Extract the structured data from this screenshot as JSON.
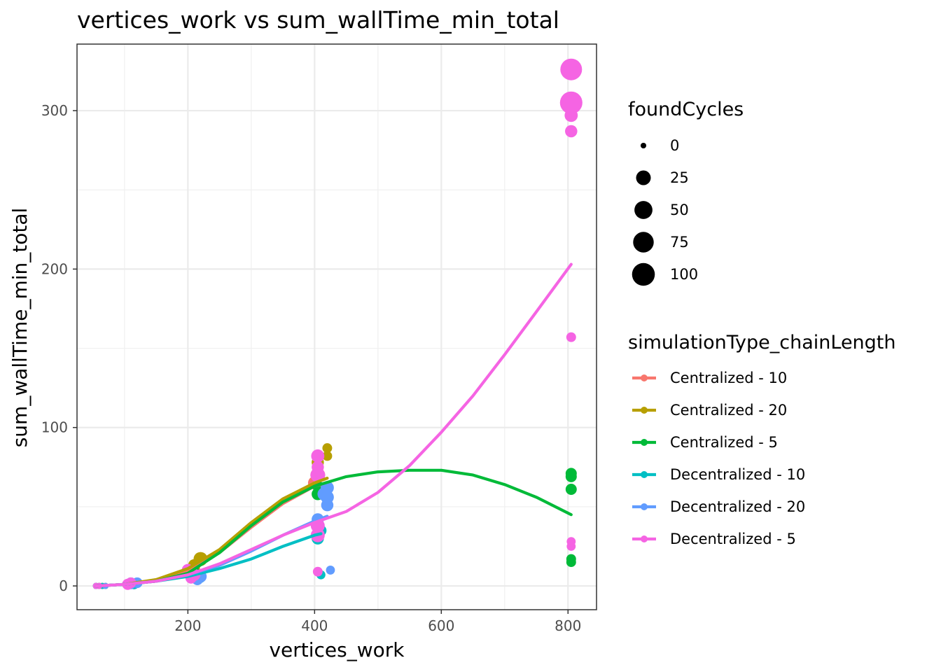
{
  "chart_data": {
    "type": "scatter",
    "title": "vertices_work  vs  sum_wallTime_min_total",
    "xlabel": "vertices_work",
    "ylabel": "sum_wallTime_min_total",
    "xlim": [
      25,
      845
    ],
    "ylim": [
      -15,
      342
    ],
    "xticks": [
      200,
      400,
      600,
      800
    ],
    "yticks": [
      0,
      100,
      200,
      300
    ],
    "grid": true,
    "legend_position": "right",
    "size_legend": {
      "title": "foundCycles",
      "entries": [
        {
          "label": "0",
          "value": 0
        },
        {
          "label": "25",
          "value": 25
        },
        {
          "label": "50",
          "value": 50
        },
        {
          "label": "75",
          "value": 75
        },
        {
          "label": "100",
          "value": 100
        }
      ]
    },
    "color_legend": {
      "title": "simulationType_chainLength"
    },
    "series": [
      {
        "name": "Centralized - 10",
        "color": "#F8766D",
        "points": [
          [
            55,
            0,
            0
          ],
          [
            65,
            0,
            0
          ],
          [
            110,
            1,
            3
          ],
          [
            115,
            1,
            5
          ],
          [
            205,
            10,
            10
          ],
          [
            210,
            11,
            12
          ],
          [
            400,
            65,
            20
          ],
          [
            405,
            70,
            30
          ]
        ],
        "smooth": [
          [
            55,
            0
          ],
          [
            100,
            1
          ],
          [
            150,
            3
          ],
          [
            200,
            10
          ],
          [
            250,
            21
          ],
          [
            300,
            37
          ],
          [
            350,
            52
          ],
          [
            400,
            63
          ],
          [
            410,
            64
          ]
        ]
      },
      {
        "name": "Centralized - 20",
        "color": "#B79F00",
        "points": [
          [
            55,
            0,
            0
          ],
          [
            70,
            0,
            0
          ],
          [
            110,
            1,
            4
          ],
          [
            120,
            2,
            5
          ],
          [
            210,
            13,
            15
          ],
          [
            220,
            17,
            25
          ],
          [
            405,
            78,
            15
          ],
          [
            420,
            87,
            5
          ],
          [
            420,
            82,
            5
          ],
          [
            415,
            60,
            10
          ]
        ],
        "smooth": [
          [
            55,
            0
          ],
          [
            100,
            1
          ],
          [
            150,
            4
          ],
          [
            200,
            11
          ],
          [
            250,
            23
          ],
          [
            300,
            40
          ],
          [
            350,
            55
          ],
          [
            400,
            65
          ],
          [
            420,
            68
          ]
        ]
      },
      {
        "name": "Centralized - 5",
        "color": "#00BA38",
        "points": [
          [
            55,
            0,
            0
          ],
          [
            60,
            0,
            0
          ],
          [
            110,
            1,
            3
          ],
          [
            115,
            1,
            3
          ],
          [
            205,
            7,
            5
          ],
          [
            210,
            9,
            8
          ],
          [
            405,
            81,
            5
          ],
          [
            405,
            63,
            10
          ],
          [
            405,
            58,
            15
          ],
          [
            805,
            71,
            10
          ],
          [
            805,
            69,
            10
          ],
          [
            805,
            61,
            10
          ],
          [
            805,
            17,
            5
          ],
          [
            805,
            15,
            5
          ]
        ],
        "smooth": [
          [
            55,
            0
          ],
          [
            100,
            1
          ],
          [
            150,
            3
          ],
          [
            200,
            8
          ],
          [
            250,
            21
          ],
          [
            300,
            38
          ],
          [
            350,
            53
          ],
          [
            400,
            63
          ],
          [
            450,
            69
          ],
          [
            500,
            72
          ],
          [
            550,
            73
          ],
          [
            600,
            73
          ],
          [
            650,
            70
          ],
          [
            700,
            64
          ],
          [
            750,
            56
          ],
          [
            805,
            45
          ]
        ]
      },
      {
        "name": "Decentralized - 10",
        "color": "#00BFC4",
        "points": [
          [
            55,
            0,
            0
          ],
          [
            65,
            0,
            0
          ],
          [
            110,
            2,
            8
          ],
          [
            115,
            1,
            5
          ],
          [
            210,
            6,
            10
          ],
          [
            220,
            5,
            5
          ],
          [
            405,
            30,
            15
          ],
          [
            410,
            35,
            10
          ],
          [
            410,
            7,
            3
          ]
        ],
        "smooth": [
          [
            55,
            0
          ],
          [
            100,
            1
          ],
          [
            150,
            3
          ],
          [
            200,
            6
          ],
          [
            250,
            11
          ],
          [
            300,
            17
          ],
          [
            350,
            25
          ],
          [
            400,
            32
          ],
          [
            410,
            33
          ]
        ]
      },
      {
        "name": "Decentralized - 20",
        "color": "#619CFF",
        "points": [
          [
            55,
            0,
            0
          ],
          [
            70,
            0,
            0
          ],
          [
            110,
            1,
            5
          ],
          [
            120,
            2,
            8
          ],
          [
            205,
            5,
            8
          ],
          [
            215,
            4,
            10
          ],
          [
            220,
            6,
            15
          ],
          [
            405,
            42,
            15
          ],
          [
            415,
            58,
            20
          ],
          [
            420,
            62,
            20
          ],
          [
            420,
            56,
            20
          ],
          [
            420,
            51,
            15
          ],
          [
            425,
            10,
            3
          ]
        ],
        "smooth": [
          [
            55,
            0
          ],
          [
            100,
            1
          ],
          [
            150,
            3
          ],
          [
            200,
            7
          ],
          [
            250,
            13
          ],
          [
            300,
            22
          ],
          [
            350,
            32
          ],
          [
            400,
            41
          ],
          [
            420,
            44
          ]
        ]
      },
      {
        "name": "Decentralized - 5",
        "color": "#F564E3",
        "points": [
          [
            55,
            0,
            0
          ],
          [
            60,
            0,
            0
          ],
          [
            105,
            1,
            10
          ],
          [
            110,
            2,
            8
          ],
          [
            200,
            10,
            15
          ],
          [
            205,
            5,
            10
          ],
          [
            210,
            7,
            15
          ],
          [
            405,
            82,
            20
          ],
          [
            405,
            75,
            15
          ],
          [
            405,
            70,
            30
          ],
          [
            405,
            38,
            25
          ],
          [
            405,
            32,
            25
          ],
          [
            405,
            9,
            5
          ],
          [
            805,
            326,
            100
          ],
          [
            805,
            305,
            110
          ],
          [
            805,
            297,
            20
          ],
          [
            805,
            287,
            15
          ],
          [
            805,
            157,
            5
          ],
          [
            805,
            28,
            3
          ],
          [
            805,
            25,
            3
          ]
        ],
        "smooth": [
          [
            55,
            0
          ],
          [
            100,
            1
          ],
          [
            150,
            3
          ],
          [
            200,
            7
          ],
          [
            250,
            14
          ],
          [
            300,
            23
          ],
          [
            350,
            32
          ],
          [
            400,
            40
          ],
          [
            450,
            47
          ],
          [
            500,
            59
          ],
          [
            550,
            76
          ],
          [
            600,
            97
          ],
          [
            650,
            120
          ],
          [
            700,
            146
          ],
          [
            750,
            173
          ],
          [
            805,
            203
          ]
        ]
      }
    ]
  }
}
